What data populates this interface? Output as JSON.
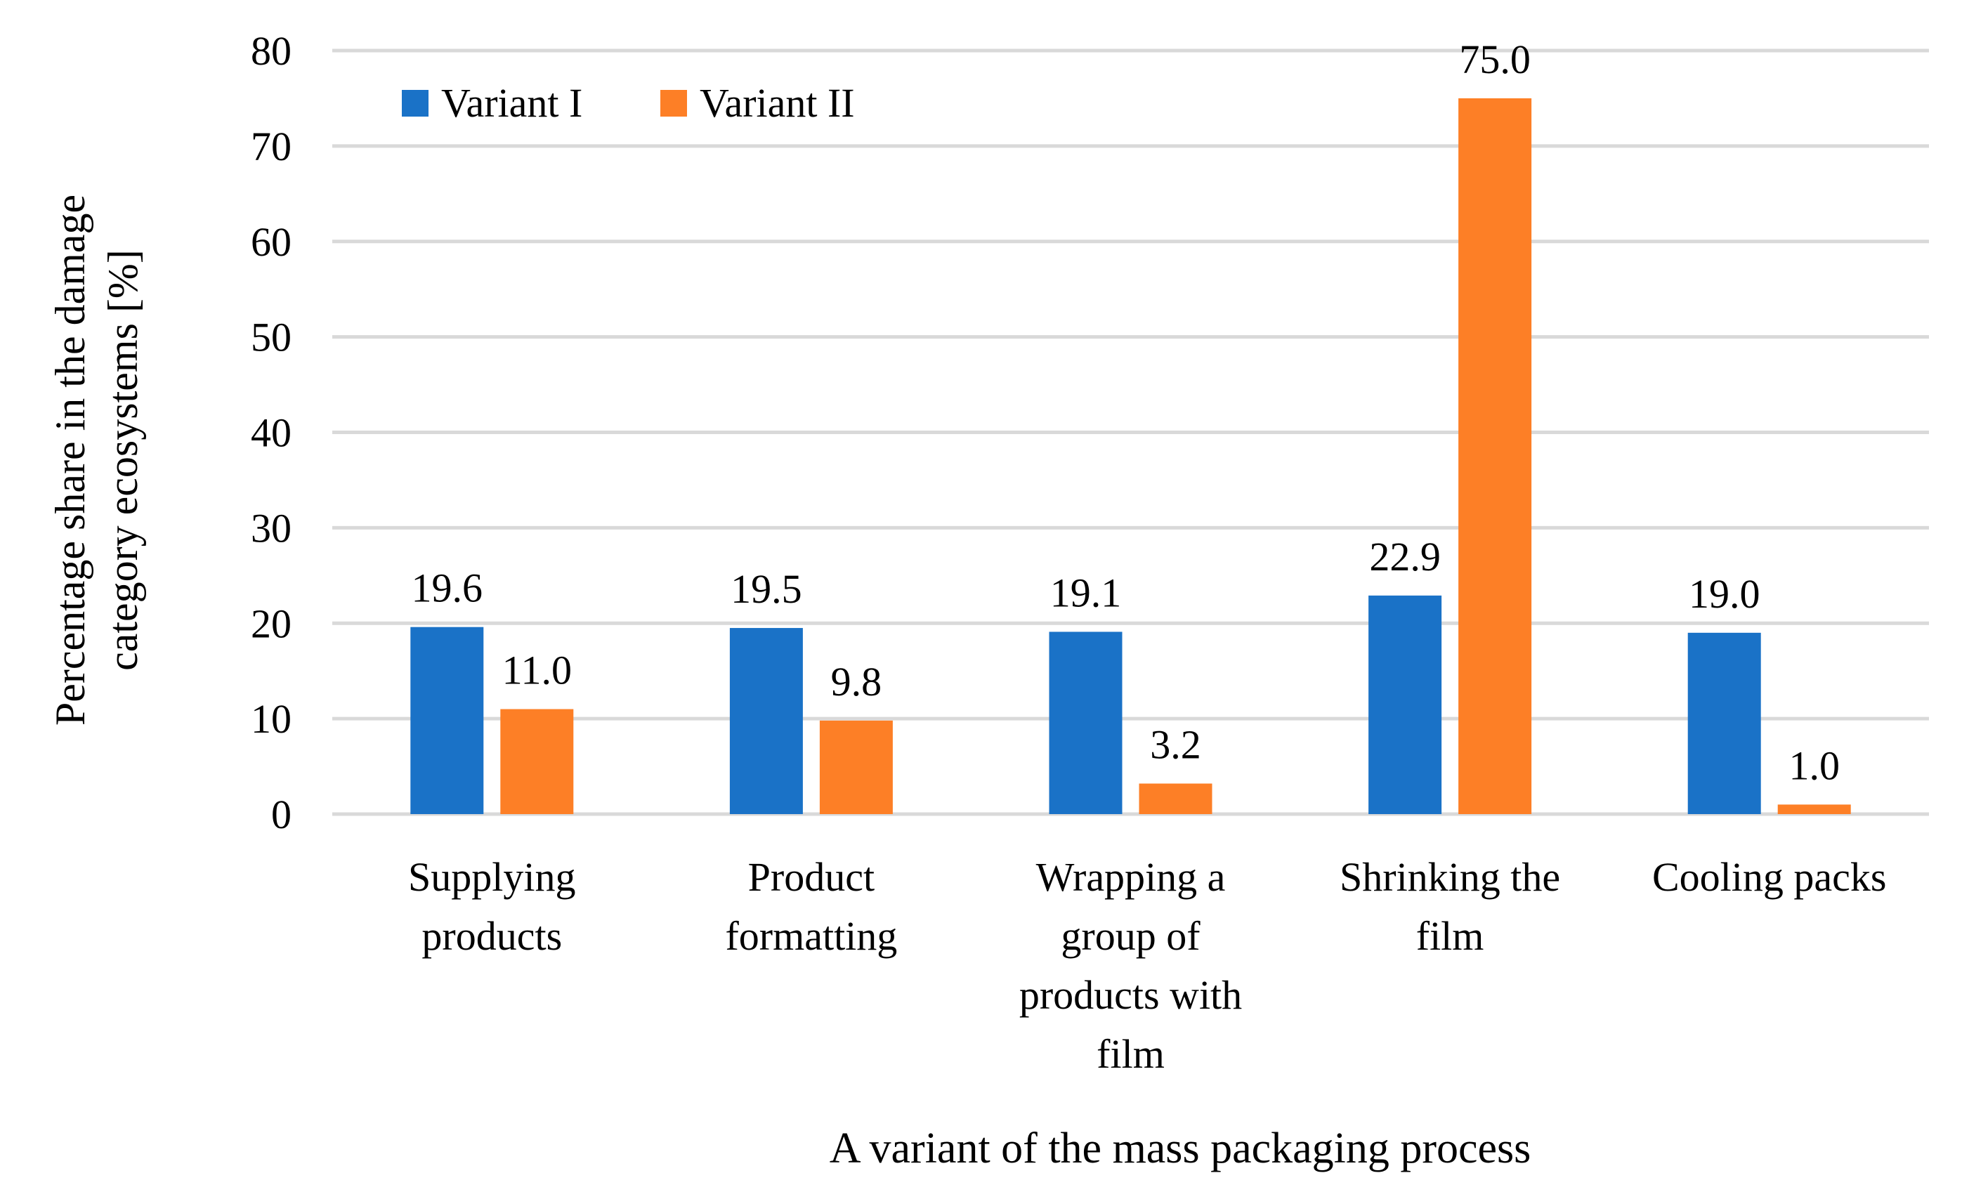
{
  "chart_data": {
    "type": "bar",
    "title": "",
    "xlabel": "A variant of the mass packaging process",
    "ylabel": [
      "Percentage share in the damage",
      "category  ecosystems [%]"
    ],
    "ylim": [
      0,
      80
    ],
    "yticks": [
      0,
      10,
      20,
      30,
      40,
      50,
      60,
      70,
      80
    ],
    "grid": true,
    "legend_position": "top-left",
    "categories": [
      [
        "Supplying",
        "products"
      ],
      [
        "Product",
        "formatting"
      ],
      [
        "Wrapping a",
        "group of",
        "products with",
        "film"
      ],
      [
        "Shrinking the",
        "film"
      ],
      [
        "Cooling packs"
      ]
    ],
    "series": [
      {
        "name": "Variant I",
        "color": "#1a72c7",
        "values": [
          19.6,
          19.5,
          19.1,
          22.9,
          19.0
        ],
        "labels": [
          "19.6",
          "19.5",
          "19.1",
          "22.9",
          "19.0"
        ]
      },
      {
        "name": "Variant II",
        "color": "#fd7f26",
        "values": [
          11.0,
          9.8,
          3.2,
          75.0,
          1.0
        ],
        "labels": [
          "11.0",
          "9.8",
          "3.2",
          "75.0",
          "1.0"
        ]
      }
    ]
  }
}
